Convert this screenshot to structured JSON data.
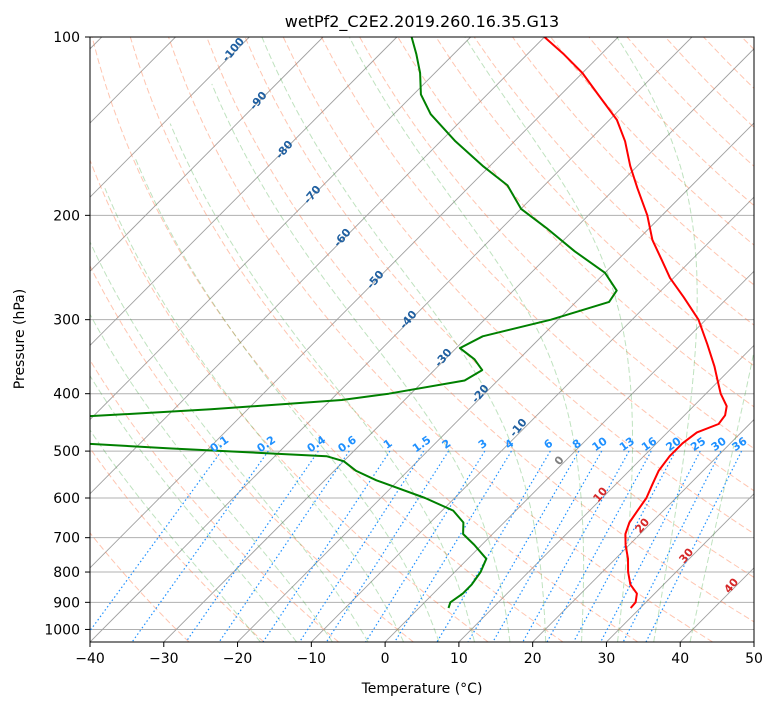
{
  "chart_data": {
    "type": "line",
    "title": "wetPf2_C2E2.2019.260.16.35.G13",
    "xlabel": "Temperature (°C)",
    "ylabel": "Pressure (hPa)",
    "xlim": [
      -40,
      50
    ],
    "ylim": [
      1050,
      100
    ],
    "y_scale": "log",
    "x_ticks": [
      -40,
      -30,
      -20,
      -10,
      0,
      10,
      20,
      30,
      40,
      50
    ],
    "y_ticks": [
      100,
      200,
      300,
      400,
      500,
      600,
      700,
      800,
      900,
      1000
    ],
    "grid": true,
    "skew": true,
    "series": [
      {
        "color": "#ff0000",
        "points": [
          [
            28.7,
            920
          ],
          [
            28.6,
            900
          ],
          [
            27.6,
            870
          ],
          [
            25.5,
            840
          ],
          [
            23.5,
            800
          ],
          [
            21.7,
            760
          ],
          [
            19.5,
            720
          ],
          [
            18.0,
            690
          ],
          [
            17.0,
            660
          ],
          [
            16.5,
            630
          ],
          [
            16.0,
            600
          ],
          [
            15.0,
            570
          ],
          [
            14.0,
            540
          ],
          [
            13.5,
            510
          ],
          [
            13.5,
            485
          ],
          [
            14.0,
            465
          ],
          [
            15.8,
            450
          ],
          [
            15.5,
            435
          ],
          [
            14.5,
            420
          ],
          [
            12.0,
            400
          ],
          [
            9.8,
            380
          ],
          [
            7.5,
            360
          ],
          [
            3.5,
            330
          ],
          [
            -1.0,
            300
          ],
          [
            -6.0,
            275
          ],
          [
            -10.5,
            255
          ],
          [
            -14.0,
            238
          ],
          [
            -18.0,
            220
          ],
          [
            -22.0,
            200
          ],
          [
            -27.0,
            180
          ],
          [
            -31.0,
            165
          ],
          [
            -35.0,
            150
          ],
          [
            -39.0,
            138
          ],
          [
            -45.0,
            125
          ],
          [
            -50.0,
            115
          ],
          [
            -55.0,
            107
          ],
          [
            -60.0,
            100
          ]
        ]
      },
      {
        "color": "#008000",
        "points": [
          [
            4.0,
            920
          ],
          [
            3.5,
            900
          ],
          [
            4.0,
            870
          ],
          [
            4.0,
            840
          ],
          [
            3.5,
            800
          ],
          [
            2.5,
            760
          ],
          [
            -1.0,
            720
          ],
          [
            -4.0,
            690
          ],
          [
            -5.5,
            660
          ],
          [
            -8.5,
            630
          ],
          [
            -14.0,
            600
          ],
          [
            -23.0,
            560
          ],
          [
            -27.0,
            540
          ],
          [
            -30.0,
            520
          ],
          [
            -33.0,
            510
          ],
          [
            -55.0,
            495
          ],
          [
            -75.0,
            480
          ],
          [
            -95.0,
            470
          ],
          [
            -75.0,
            440
          ],
          [
            -55.0,
            425
          ],
          [
            -38.5,
            410
          ],
          [
            -33.0,
            400
          ],
          [
            -24.5,
            380
          ],
          [
            -23.5,
            365
          ],
          [
            -26.0,
            350
          ],
          [
            -29.5,
            335
          ],
          [
            -28.0,
            320
          ],
          [
            -21.0,
            300
          ],
          [
            -15.5,
            280
          ],
          [
            -16.0,
            268
          ],
          [
            -20.0,
            250
          ],
          [
            -27.0,
            230
          ],
          [
            -34.0,
            210
          ],
          [
            -40.0,
            195
          ],
          [
            -45.0,
            178
          ],
          [
            -51.0,
            165
          ],
          [
            -58.0,
            150
          ],
          [
            -65.0,
            135
          ],
          [
            -69.0,
            125
          ],
          [
            -72.0,
            115
          ],
          [
            -75.0,
            107
          ],
          [
            -78.0,
            100
          ]
        ]
      }
    ],
    "dry_adiabat_labels": [
      "-100",
      "-90",
      "-80",
      "-70",
      "-60",
      "-50",
      "-40",
      "-30",
      "-20",
      "-10",
      "0",
      "10",
      "20",
      "30",
      "40"
    ],
    "mixing_ratio_labels": [
      "0.1",
      "0.2",
      "0.4",
      "0.6",
      "1",
      "1.5",
      "2",
      "3",
      "4",
      "6",
      "8",
      "10",
      "13",
      "16",
      "20",
      "25",
      "30",
      "36"
    ]
  },
  "colors": {
    "temperature": "#ff0000",
    "dewpoint": "#008000",
    "isotherm": "#a0a0a0",
    "dry_adiabat": "#ff7f50",
    "moist_adiabat": "#2ca02c",
    "mixing_ratio": "#1e90ff",
    "dry_label": "#1f5fa0",
    "mixing_label": "#1e90ff",
    "moist_label": "#d62728"
  }
}
